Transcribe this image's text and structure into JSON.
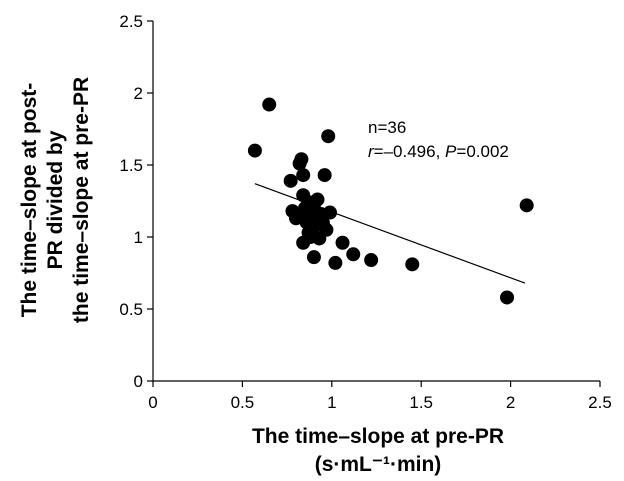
{
  "chart_data": {
    "type": "scatter",
    "xlabel": [
      "The time–slope at pre-PR",
      "(s·mL⁻¹·min)"
    ],
    "ylabel": [
      "The time–slope at post-",
      "PR divided by",
      "the time–slope at pre-PR"
    ],
    "xlim": [
      0,
      2.5
    ],
    "ylim": [
      0,
      2.5
    ],
    "xticks": [
      "0",
      "0.5",
      "1",
      "1.5",
      "2",
      "2.5"
    ],
    "yticks": [
      "0",
      "0.5",
      "1",
      "1.5",
      "2",
      "2.5"
    ],
    "annotation": {
      "n": "n=36",
      "r_label": "r",
      "r_value": "=–0.496, ",
      "p_label": "P",
      "p_value": "=0.002"
    },
    "regression": {
      "x": [
        0.57,
        2.08
      ],
      "y": [
        1.37,
        0.68
      ]
    },
    "points": [
      [
        0.57,
        1.6
      ],
      [
        0.65,
        1.92
      ],
      [
        0.77,
        1.39
      ],
      [
        0.78,
        1.18
      ],
      [
        0.8,
        1.13
      ],
      [
        0.82,
        1.51
      ],
      [
        0.83,
        1.54
      ],
      [
        0.84,
        1.43
      ],
      [
        0.84,
        1.29
      ],
      [
        0.85,
        1.2
      ],
      [
        0.84,
        0.96
      ],
      [
        0.86,
        1.1
      ],
      [
        0.87,
        1.03
      ],
      [
        0.88,
        1.24
      ],
      [
        0.89,
        1.15
      ],
      [
        0.9,
        1.22
      ],
      [
        0.91,
        1.08
      ],
      [
        0.92,
        1.13
      ],
      [
        0.93,
        0.99
      ],
      [
        0.94,
        1.16
      ],
      [
        0.95,
        1.1
      ],
      [
        0.96,
        1.43
      ],
      [
        0.97,
        1.05
      ],
      [
        0.98,
        1.7
      ],
      [
        0.99,
        1.17
      ],
      [
        1.02,
        0.82
      ],
      [
        1.06,
        0.96
      ],
      [
        1.12,
        0.88
      ],
      [
        1.22,
        0.84
      ],
      [
        1.45,
        0.81
      ],
      [
        1.98,
        0.58
      ],
      [
        2.09,
        1.22
      ],
      [
        0.9,
        0.86
      ],
      [
        0.88,
        1.0
      ],
      [
        0.92,
        1.26
      ],
      [
        0.86,
        1.16
      ]
    ]
  }
}
